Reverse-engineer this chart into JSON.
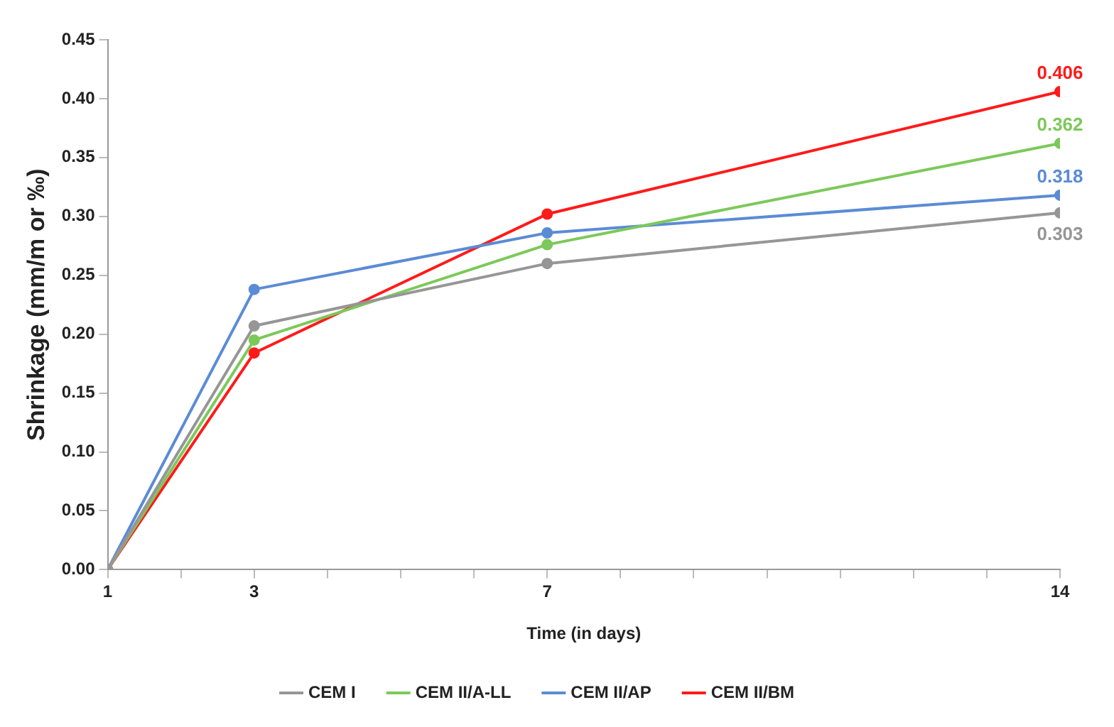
{
  "chart_data": {
    "type": "line",
    "xlabel": "Time (in days)",
    "ylabel": "Shrinkage (mm/m or ‰)",
    "x": [
      1,
      3,
      7,
      14
    ],
    "xlim": [
      1,
      14
    ],
    "xticks": [
      1,
      {
        "value": 2,
        "label": null
      },
      3,
      {
        "value": 4,
        "label": null
      },
      {
        "value": 5,
        "label": null
      },
      {
        "value": 6,
        "label": null
      },
      7,
      {
        "value": 8,
        "label": null
      },
      {
        "value": 9,
        "label": null
      },
      {
        "value": 10,
        "label": null
      },
      {
        "value": 11,
        "label": null
      },
      {
        "value": 12,
        "label": null
      },
      {
        "value": 13,
        "label": null
      },
      14
    ],
    "ylim": [
      0,
      0.45
    ],
    "yticks": [
      {
        "value": 0,
        "label": "0.00"
      },
      {
        "value": 0.05,
        "label": "0.05"
      },
      {
        "value": 0.1,
        "label": "0.10"
      },
      {
        "value": 0.15,
        "label": "0.15"
      },
      {
        "value": 0.2,
        "label": "0.20"
      },
      {
        "value": 0.25,
        "label": "0.25"
      },
      {
        "value": 0.3,
        "label": "0.30"
      },
      {
        "value": 0.35,
        "label": "0.35"
      },
      {
        "value": 0.4,
        "label": "0.40"
      },
      {
        "value": 0.45,
        "label": "0.45"
      }
    ],
    "grid": false,
    "legend": "bottom",
    "marker": "circle",
    "line_style": "solid",
    "series": [
      {
        "name": "CEM I",
        "color": "#969696",
        "values": [
          0,
          0.207,
          0.26,
          0.303
        ],
        "value_labels": [
          null,
          null,
          null,
          "0.303"
        ]
      },
      {
        "name": "CEM II/A-LL",
        "color": "#7cc95a",
        "values": [
          0,
          0.195,
          0.276,
          0.362
        ],
        "value_labels": [
          null,
          null,
          null,
          "0.362"
        ]
      },
      {
        "name": "CEM II/AP",
        "color": "#5b8bd6",
        "values": [
          0,
          0.238,
          0.286,
          0.318
        ],
        "value_labels": [
          null,
          null,
          null,
          "0.318"
        ]
      },
      {
        "name": "CEM II/BM",
        "color": "#ff1a1a",
        "values": [
          0,
          0.184,
          0.302,
          0.406
        ],
        "value_labels": [
          null,
          null,
          null,
          "0.406"
        ]
      }
    ]
  }
}
